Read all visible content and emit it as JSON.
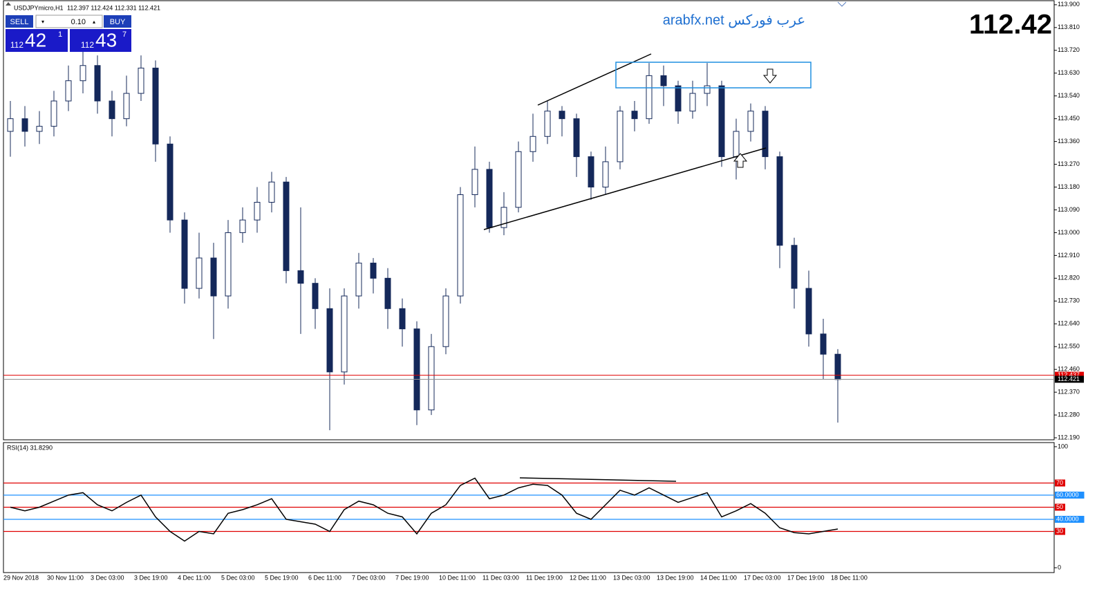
{
  "header": {
    "symbol": "USDJPYmicro,H1",
    "ohlc": "112.397 112.424 112.331 112.421"
  },
  "trade_panel": {
    "sell": "SELL",
    "buy": "BUY",
    "lot": "0.10",
    "bid_big": "112",
    "bid_main": "42",
    "bid_small": "1",
    "ask_big": "112",
    "ask_main": "43",
    "ask_small": "7"
  },
  "watermark": "arabfx.net عرب فوركس",
  "price_display": "112.42",
  "chart_data": [
    {
      "type": "candlestick",
      "categories": [
        "29 Nov 2018",
        null,
        null,
        "30 Nov 11:00",
        null,
        null,
        "3 Dec 03:00",
        null,
        null,
        "3 Dec 19:00",
        null,
        null,
        "4 Dec 11:00",
        null,
        null,
        "5 Dec 03:00",
        null,
        null,
        "5 Dec 19:00",
        null,
        null,
        "6 Dec 11:00",
        null,
        null,
        "7 Dec 03:00",
        null,
        null,
        "7 Dec 19:00",
        null,
        null,
        "10 Dec 11:00",
        null,
        null,
        "11 Dec 03:00",
        null,
        null,
        "11 Dec 19:00",
        null,
        null,
        "12 Dec 11:00",
        null,
        null,
        "13 Dec 03:00",
        null,
        null,
        "13 Dec 19:00",
        null,
        null,
        "14 Dec 11:00",
        null,
        null,
        "17 Dec 03:00",
        null,
        null,
        "17 Dec 19:00",
        null,
        null,
        "18 Dec 11:00"
      ],
      "open": [
        113.4,
        113.45,
        113.4,
        113.42,
        113.52,
        113.6,
        113.66,
        113.52,
        113.45,
        113.55,
        113.65,
        113.35,
        113.05,
        112.78,
        112.9,
        112.75,
        113.0,
        113.05,
        113.12,
        113.2,
        112.85,
        112.8,
        112.7,
        112.45,
        112.75,
        112.88,
        112.82,
        112.7,
        112.62,
        112.3,
        112.55,
        112.75,
        113.15,
        113.25,
        113.02,
        113.1,
        113.32,
        113.38,
        113.48,
        113.45,
        113.3,
        113.18,
        113.28,
        113.48,
        113.45,
        113.62,
        113.58,
        113.48,
        113.55,
        113.58,
        113.3,
        113.4,
        113.48,
        113.3,
        112.95,
        112.78,
        112.6,
        112.52
      ],
      "high": [
        113.52,
        113.5,
        113.48,
        113.56,
        113.66,
        113.72,
        113.7,
        113.56,
        113.62,
        113.7,
        113.68,
        113.38,
        113.08,
        113.0,
        112.96,
        113.05,
        113.1,
        113.18,
        113.24,
        113.22,
        113.1,
        112.82,
        112.78,
        112.78,
        112.92,
        112.9,
        112.86,
        112.74,
        112.65,
        112.6,
        112.78,
        113.18,
        113.34,
        113.28,
        113.16,
        113.36,
        113.47,
        113.52,
        113.5,
        113.47,
        113.32,
        113.34,
        113.5,
        113.52,
        113.67,
        113.66,
        113.6,
        113.6,
        113.67,
        113.6,
        113.45,
        113.51,
        113.5,
        113.32,
        112.98,
        112.85,
        112.66,
        112.54
      ],
      "low": [
        113.3,
        113.34,
        113.35,
        113.38,
        113.48,
        113.55,
        113.47,
        113.38,
        113.42,
        113.52,
        113.28,
        113.0,
        112.72,
        112.74,
        112.58,
        112.7,
        112.96,
        113.0,
        113.08,
        112.8,
        112.6,
        112.62,
        112.22,
        112.4,
        112.7,
        112.76,
        112.62,
        112.55,
        112.24,
        112.28,
        112.52,
        112.72,
        113.1,
        113.0,
        112.99,
        113.08,
        113.28,
        113.35,
        113.38,
        113.22,
        113.13,
        113.15,
        113.25,
        113.4,
        113.43,
        113.5,
        113.43,
        113.45,
        113.5,
        113.26,
        113.21,
        113.36,
        113.25,
        112.86,
        112.7,
        112.55,
        112.42,
        112.25
      ],
      "close": [
        113.45,
        113.4,
        113.42,
        113.52,
        113.6,
        113.66,
        113.52,
        113.45,
        113.55,
        113.65,
        113.35,
        113.05,
        112.78,
        112.9,
        112.75,
        113.0,
        113.05,
        113.12,
        113.2,
        112.85,
        112.8,
        112.7,
        112.45,
        112.75,
        112.88,
        112.82,
        112.7,
        112.62,
        112.3,
        112.55,
        112.75,
        113.15,
        113.25,
        113.02,
        113.1,
        113.32,
        113.38,
        113.48,
        113.45,
        113.3,
        113.18,
        113.28,
        113.48,
        113.45,
        113.62,
        113.58,
        113.48,
        113.55,
        113.58,
        113.3,
        113.4,
        113.48,
        113.3,
        112.95,
        112.78,
        112.6,
        112.52,
        112.42
      ],
      "up_color": "#ffffff",
      "down_color": "#14285a",
      "wick_color": "#14285a",
      "ylim": [
        112.182,
        113.916
      ],
      "yticks": [
        {
          "value": 113.9,
          "label": "113.900"
        },
        {
          "value": 113.81,
          "label": "113.810"
        },
        {
          "value": 113.72,
          "label": "113.720"
        },
        {
          "value": 113.63,
          "label": "113.630"
        },
        {
          "value": 113.54,
          "label": "113.540"
        },
        {
          "value": 113.45,
          "label": "113.450"
        },
        {
          "value": 113.36,
          "label": "113.360"
        },
        {
          "value": 113.27,
          "label": "113.270"
        },
        {
          "value": 113.18,
          "label": "113.180"
        },
        {
          "value": 113.09,
          "label": "113.090"
        },
        {
          "value": 113.0,
          "label": "113.000"
        },
        {
          "value": 112.91,
          "label": "112.910"
        },
        {
          "value": 112.82,
          "label": "112.820"
        },
        {
          "value": 112.73,
          "label": "112.730"
        },
        {
          "value": 112.64,
          "label": "112.640"
        },
        {
          "value": 112.55,
          "label": "112.550"
        },
        {
          "value": 112.46,
          "label": "112.460"
        },
        {
          "value": 112.37,
          "label": "112.370"
        },
        {
          "value": 112.28,
          "label": "112.280"
        },
        {
          "value": 112.19,
          "label": "112.190"
        }
      ],
      "price_lines": [
        {
          "value": 112.437,
          "label": "112.437",
          "color": "#e00000"
        },
        {
          "value": 112.421,
          "label": "112.421",
          "color": "#909090"
        }
      ]
    },
    {
      "type": "line",
      "title": "RSI(14) 31.8290",
      "color": "#000000",
      "values": [
        50,
        47,
        50,
        55,
        60,
        62,
        52,
        47,
        54,
        60,
        42,
        30,
        22,
        30,
        28,
        45,
        48,
        52,
        57,
        40,
        38,
        36,
        30,
        48,
        55,
        52,
        45,
        42,
        28,
        45,
        52,
        68,
        74,
        57,
        60,
        66,
        69,
        68,
        60,
        45,
        40,
        52,
        64,
        60,
        66,
        60,
        54,
        58,
        62,
        42,
        47,
        53,
        45,
        33,
        29,
        28,
        30,
        32
      ],
      "ylim": [
        -4,
        103.4
      ],
      "yticks": [
        100,
        0
      ],
      "levels": [
        {
          "value": 70,
          "label": "70",
          "color": "#e00000"
        },
        {
          "value": 60,
          "label": "60.0000",
          "color": "#1e90ff"
        },
        {
          "value": 50,
          "label": "50",
          "color": "#e00000"
        },
        {
          "value": 40,
          "label": "40.0000",
          "color": "#1e90ff"
        },
        {
          "value": 30,
          "label": "30",
          "color": "#e00000"
        }
      ]
    }
  ]
}
